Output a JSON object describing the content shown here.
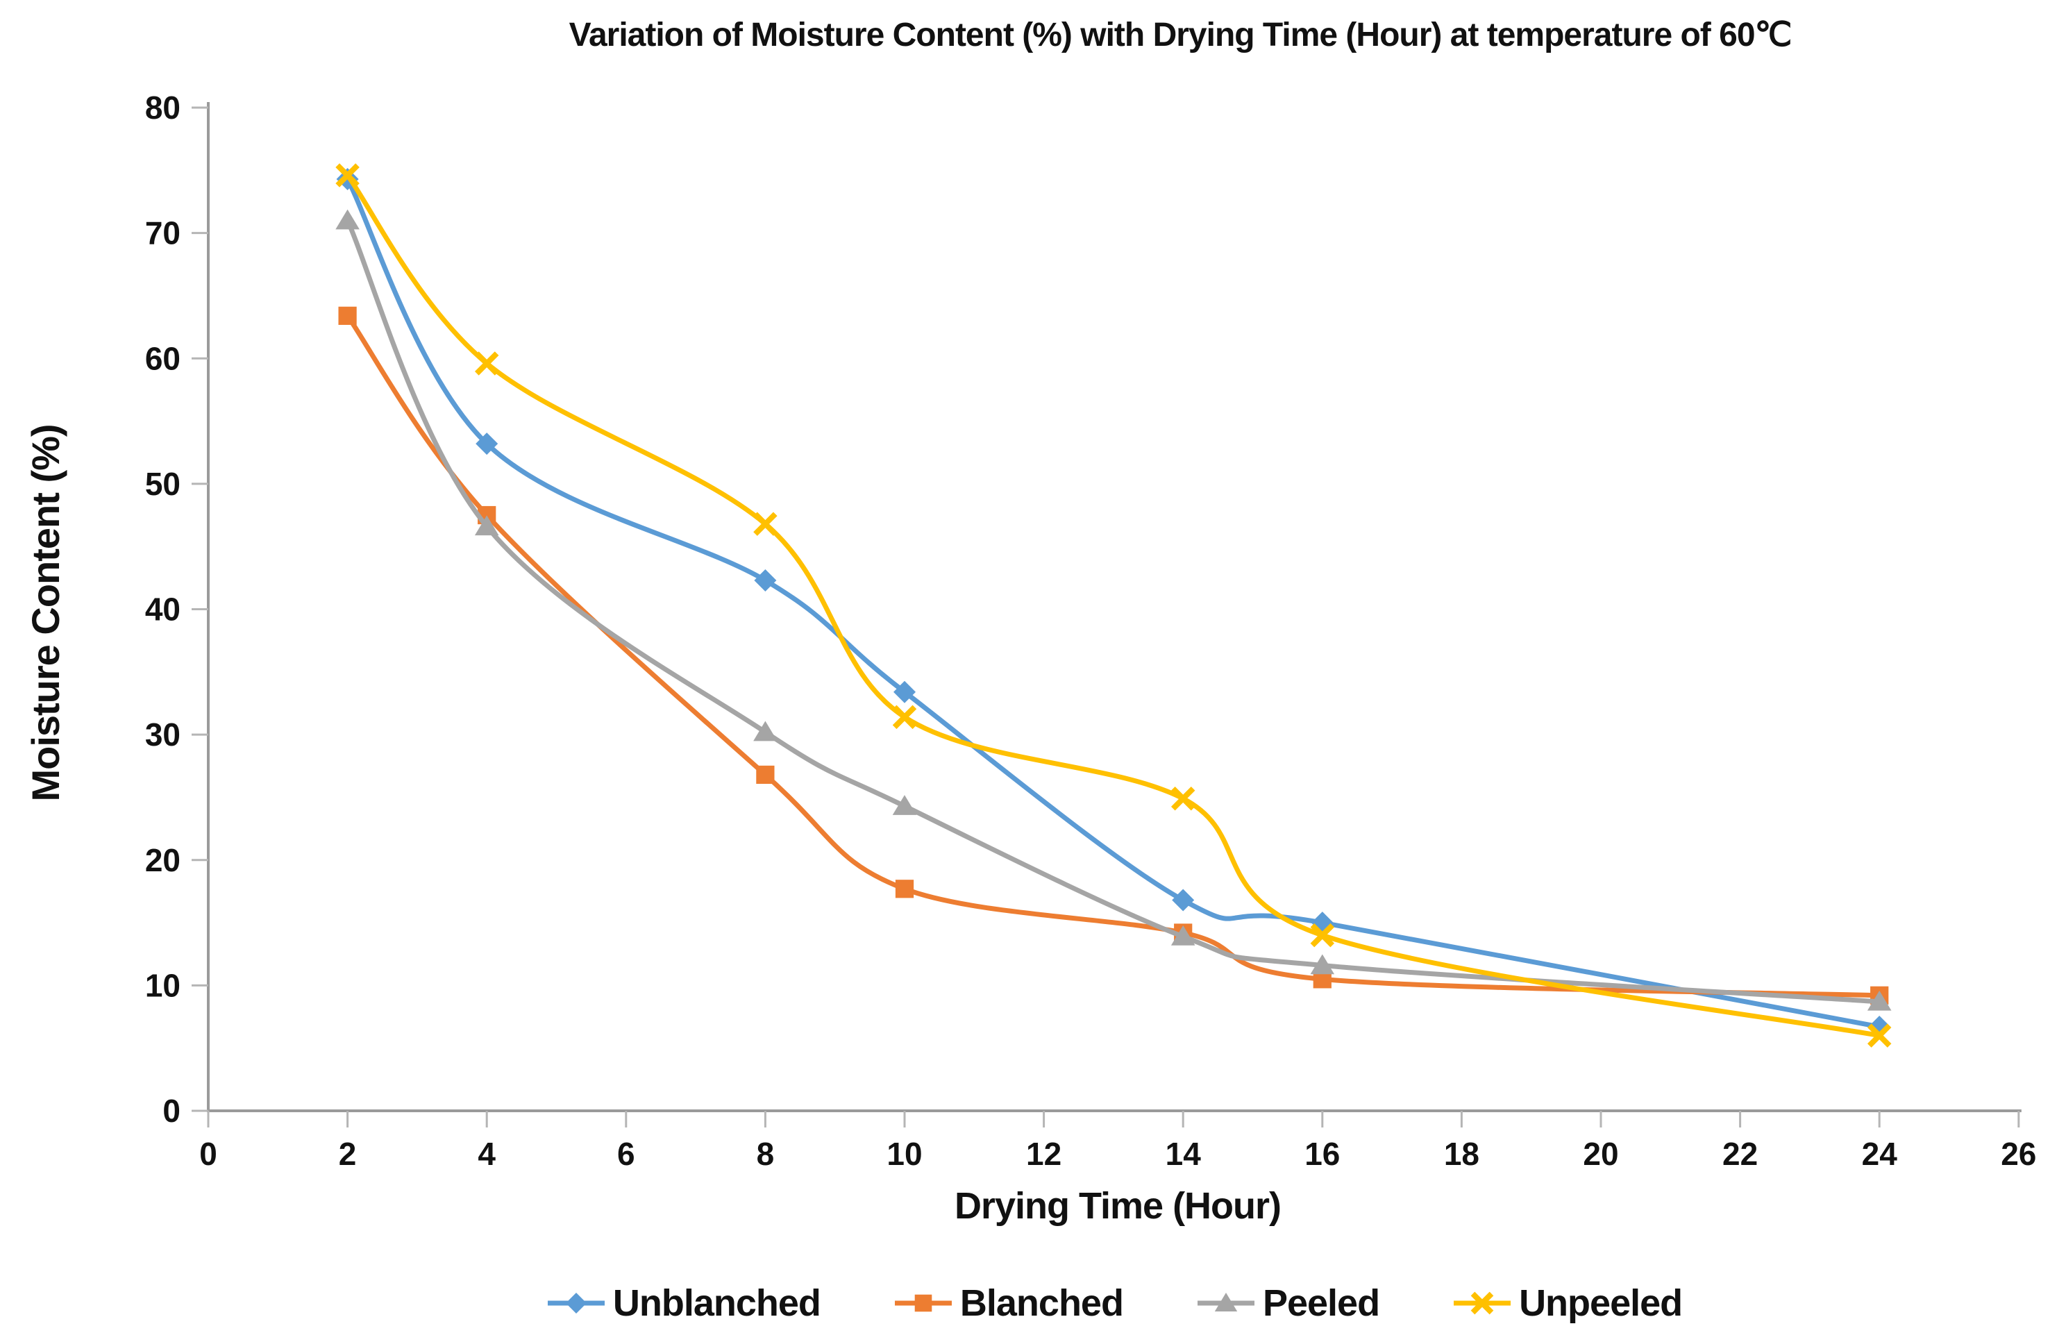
{
  "chart_data": {
    "type": "line",
    "title": "Variation of Moisture Content (%) with Drying Time (Hour) at temperature of 60℃",
    "xlabel": "Drying Time (Hour)",
    "ylabel": "Moisture Content (%)",
    "x": [
      2,
      4,
      8,
      10,
      14,
      16,
      24
    ],
    "x_ticks": [
      0,
      2,
      4,
      6,
      8,
      10,
      12,
      14,
      16,
      18,
      20,
      22,
      24,
      26
    ],
    "y_ticks": [
      0,
      10,
      20,
      30,
      40,
      50,
      60,
      70,
      80
    ],
    "xlim": [
      0,
      26
    ],
    "ylim": [
      0,
      80
    ],
    "grid": false,
    "line_smoothing": true,
    "legend_position": "bottom",
    "axis_color": "#9a9a9a",
    "tick_color": "#b5b5b5",
    "series": [
      {
        "name": "Unblanched",
        "color": "#5B9BD5",
        "marker": "diamond",
        "values": [
          74.3,
          53.2,
          42.3,
          33.4,
          16.8,
          15.0,
          6.7
        ]
      },
      {
        "name": "Blanched",
        "color": "#ED7D31",
        "marker": "square",
        "values": [
          63.4,
          47.5,
          26.8,
          17.7,
          14.2,
          10.5,
          9.2
        ]
      },
      {
        "name": "Peeled",
        "color": "#A5A5A5",
        "marker": "triangle",
        "values": [
          71.0,
          46.6,
          30.2,
          24.3,
          13.9,
          11.6,
          8.7
        ]
      },
      {
        "name": "Unpeeled",
        "color": "#FFC000",
        "marker": "x",
        "values": [
          74.6,
          59.6,
          46.8,
          31.4,
          24.9,
          14.0,
          6.0
        ]
      }
    ]
  }
}
